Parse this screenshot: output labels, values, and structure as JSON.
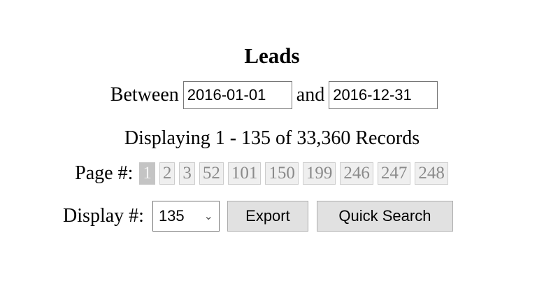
{
  "title": "Leads",
  "filter": {
    "between_label": "Between",
    "start_date": "2016-01-01",
    "and_label": "and",
    "end_date": "2016-12-31"
  },
  "summary": "Displaying 1 - 135 of 33,360 Records",
  "pagination": {
    "label": "Page #:",
    "pages": [
      "1",
      "2",
      "3",
      "52",
      "101",
      "150",
      "199",
      "246",
      "247",
      "248"
    ],
    "current": "1"
  },
  "display": {
    "label": "Display #:",
    "selected": "135"
  },
  "actions": {
    "export": "Export",
    "quick_search": "Quick Search"
  }
}
